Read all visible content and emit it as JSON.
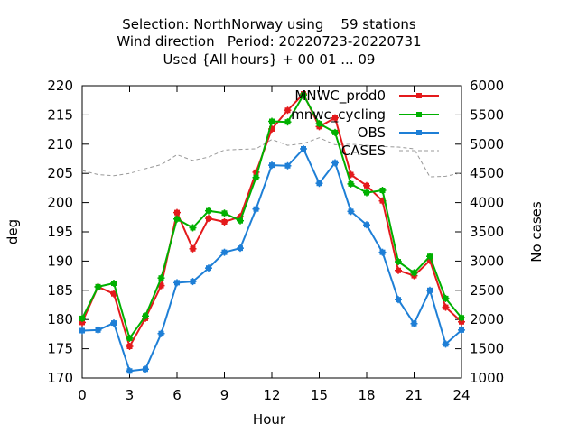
{
  "chart_data": {
    "type": "line",
    "title_lines": [
      "Selection: NorthNorway using    59 stations",
      "Wind direction   Period: 20220723-20220731",
      "Used {All hours} + 00 01 ... 09"
    ],
    "xlabel": "Hour",
    "ylabel": "deg",
    "y2label": "No cases",
    "xlim": [
      0,
      24
    ],
    "ylim": [
      170,
      220
    ],
    "y2lim": [
      1000,
      6000
    ],
    "xticks": [
      0,
      3,
      6,
      9,
      12,
      15,
      18,
      21,
      24
    ],
    "yticks": [
      170,
      175,
      180,
      185,
      190,
      195,
      200,
      205,
      210,
      215,
      220
    ],
    "y2ticks": [
      1000,
      1500,
      2000,
      2500,
      3000,
      3500,
      4000,
      4500,
      5000,
      5500,
      6000
    ],
    "grid": false,
    "legend_position": "top-right",
    "x": [
      0,
      1,
      2,
      3,
      4,
      5,
      6,
      7,
      8,
      9,
      10,
      11,
      12,
      13,
      14,
      15,
      16,
      17,
      18,
      19,
      20,
      21,
      22,
      23,
      24
    ],
    "series": [
      {
        "name": "MNWC_prod0",
        "color": "#e41a1c",
        "axis": "left",
        "values": [
          179.5,
          185.6,
          184.4,
          175.4,
          180.2,
          185.8,
          198.3,
          192.1,
          197.3,
          196.7,
          197.6,
          205.2,
          212.6,
          215.8,
          218.6,
          213.0,
          214.5,
          204.8,
          202.9,
          200.3,
          188.4,
          187.5,
          190.1,
          182.1,
          179.6
        ]
      },
      {
        "name": "mnwc_cycling",
        "color": "#00b000",
        "axis": "left",
        "values": [
          180.2,
          185.6,
          186.2,
          176.8,
          180.6,
          187.1,
          197.2,
          195.7,
          198.6,
          198.2,
          196.9,
          204.3,
          213.9,
          213.8,
          218.4,
          213.5,
          212.0,
          203.2,
          201.7,
          202.1,
          189.9,
          188.0,
          190.8,
          183.6,
          180.3
        ]
      },
      {
        "name": "OBS",
        "color": "#1e7fd6",
        "axis": "left",
        "values": [
          178.1,
          178.2,
          179.4,
          171.2,
          171.5,
          177.6,
          186.3,
          186.5,
          188.8,
          191.5,
          192.2,
          198.9,
          206.4,
          206.3,
          209.2,
          203.3,
          206.8,
          198.5,
          196.2,
          191.5,
          183.4,
          179.3,
          185.0,
          175.8,
          178.2
        ]
      },
      {
        "name": "CASES",
        "color": "#999999",
        "axis": "right",
        "dashed": true,
        "values": [
          4550,
          4480,
          4460,
          4500,
          4580,
          4650,
          4820,
          4720,
          4780,
          4900,
          4910,
          4920,
          5080,
          4980,
          5010,
          5110,
          4990,
          5000,
          4980,
          4960,
          4950,
          4920,
          4440,
          4450,
          4510
        ]
      }
    ]
  }
}
